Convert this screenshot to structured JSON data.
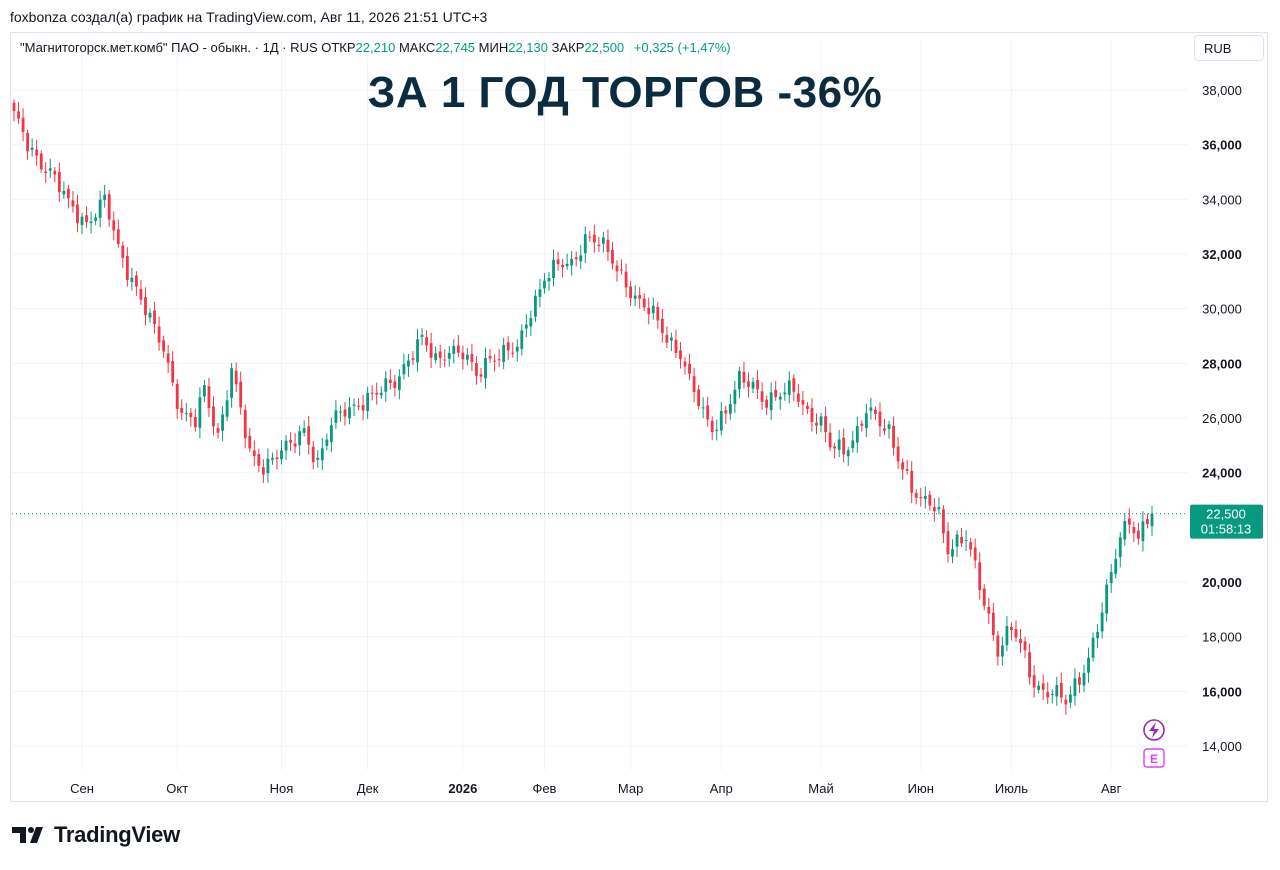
{
  "credit": "foxbonza создал(а) график на TradingView.com, Авг 11, 2026 21:51 UTC+3",
  "legend": {
    "symbol": "\"Магнитогорск.мет.комб\" ПАО - обыкн. · 1Д · RUS",
    "open_label": "ОТКР",
    "open": "22,210",
    "high_label": "МАКС",
    "high": "22,745",
    "low_label": "МИН",
    "low": "22,130",
    "close_label": "ЗАКР",
    "close": "22,500",
    "change": "+0,325 (+1,47%)"
  },
  "currency": "RUB",
  "headline": "ЗА 1 ГОД ТОРГОВ -36%",
  "brand": "TradingView",
  "colors": {
    "up": "#089981",
    "down": "#f23645",
    "grid": "#f0f3fa",
    "headline": "#0d2b3e",
    "label_bg": "#089981"
  },
  "icons": {
    "bolt": "lightning-icon",
    "earnings": "earnings-icon"
  },
  "chart_data": {
    "type": "candlestick",
    "title": "ЗА 1 ГОД ТОРГОВ -36%",
    "ylim": [
      13200,
      39300
    ],
    "y_ticks": [
      "38,000",
      "36,000",
      "34,000",
      "32,000",
      "30,000",
      "28,000",
      "26,000",
      "24,000",
      "20,000",
      "18,000",
      "16,000",
      "14,000"
    ],
    "y_tick_values": [
      38000,
      36000,
      34000,
      32000,
      30000,
      28000,
      26000,
      24000,
      20000,
      18000,
      16000,
      14000
    ],
    "bold_ticks": [
      36000,
      32000,
      28000,
      24000,
      20000,
      16000
    ],
    "x_ticks": [
      {
        "label": "Сен",
        "bar": 15,
        "bold": false
      },
      {
        "label": "Окт",
        "bar": 36,
        "bold": false
      },
      {
        "label": "Ноя",
        "bar": 59,
        "bold": false
      },
      {
        "label": "Дек",
        "bar": 78,
        "bold": false
      },
      {
        "label": "2026",
        "bar": 99,
        "bold": true
      },
      {
        "label": "Фев",
        "bar": 117,
        "bold": false
      },
      {
        "label": "Мар",
        "bar": 136,
        "bold": false
      },
      {
        "label": "Апр",
        "bar": 156,
        "bold": false
      },
      {
        "label": "Май",
        "bar": 178,
        "bold": false
      },
      {
        "label": "Июн",
        "bar": 200,
        "bold": false
      },
      {
        "label": "Июль",
        "bar": 220,
        "bold": false
      },
      {
        "label": "Авг",
        "bar": 242,
        "bold": false
      }
    ],
    "last_price": "22,500",
    "last_price_value": 22500,
    "countdown": "01:58:13",
    "anchors": [
      [
        0,
        37000
      ],
      [
        3,
        36000
      ],
      [
        8,
        35000
      ],
      [
        12,
        33800
      ],
      [
        16,
        33200
      ],
      [
        20,
        33900
      ],
      [
        23,
        32200
      ],
      [
        27,
        30800
      ],
      [
        30,
        29500
      ],
      [
        33,
        28500
      ],
      [
        37,
        26200
      ],
      [
        40,
        25800
      ],
      [
        42,
        27000
      ],
      [
        45,
        25400
      ],
      [
        48,
        27800
      ],
      [
        50,
        26200
      ],
      [
        52,
        24600
      ],
      [
        55,
        24300
      ],
      [
        58,
        24700
      ],
      [
        61,
        24900
      ],
      [
        64,
        25600
      ],
      [
        67,
        24400
      ],
      [
        70,
        25700
      ],
      [
        73,
        26300
      ],
      [
        76,
        26600
      ],
      [
        80,
        26800
      ],
      [
        84,
        27400
      ],
      [
        87,
        28200
      ],
      [
        90,
        28800
      ],
      [
        93,
        28100
      ],
      [
        96,
        28600
      ],
      [
        99,
        28300
      ],
      [
        102,
        27500
      ],
      [
        105,
        28300
      ],
      [
        108,
        28400
      ],
      [
        111,
        28400
      ],
      [
        114,
        30000
      ],
      [
        117,
        31200
      ],
      [
        120,
        31500
      ],
      [
        123,
        31600
      ],
      [
        126,
        32700
      ],
      [
        129,
        32400
      ],
      [
        132,
        31700
      ],
      [
        135,
        31000
      ],
      [
        138,
        30200
      ],
      [
        141,
        29700
      ],
      [
        144,
        29000
      ],
      [
        147,
        28400
      ],
      [
        149,
        27300
      ],
      [
        152,
        26100
      ],
      [
        154,
        25700
      ],
      [
        157,
        26300
      ],
      [
        160,
        27300
      ],
      [
        163,
        27200
      ],
      [
        166,
        26700
      ],
      [
        169,
        26800
      ],
      [
        172,
        27000
      ],
      [
        175,
        26300
      ],
      [
        178,
        25800
      ],
      [
        180,
        24900
      ],
      [
        183,
        24800
      ],
      [
        186,
        25600
      ],
      [
        188,
        26300
      ],
      [
        191,
        25700
      ],
      [
        193,
        25500
      ],
      [
        196,
        24300
      ],
      [
        198,
        23400
      ],
      [
        200,
        22800
      ],
      [
        202,
        22900
      ],
      [
        204,
        22600
      ],
      [
        206,
        21300
      ],
      [
        208,
        21400
      ],
      [
        210,
        21500
      ],
      [
        212,
        20500
      ],
      [
        215,
        18800
      ],
      [
        217,
        17500
      ],
      [
        220,
        18200
      ],
      [
        222,
        17700
      ],
      [
        225,
        16400
      ],
      [
        227,
        16000
      ],
      [
        230,
        15800
      ],
      [
        232,
        15600
      ],
      [
        234,
        16300
      ],
      [
        237,
        17200
      ],
      [
        240,
        18800
      ],
      [
        242,
        20300
      ],
      [
        244,
        21800
      ],
      [
        246,
        22400
      ],
      [
        248,
        21500
      ],
      [
        250,
        22200
      ],
      [
        251,
        22500
      ]
    ],
    "bars": 252
  }
}
